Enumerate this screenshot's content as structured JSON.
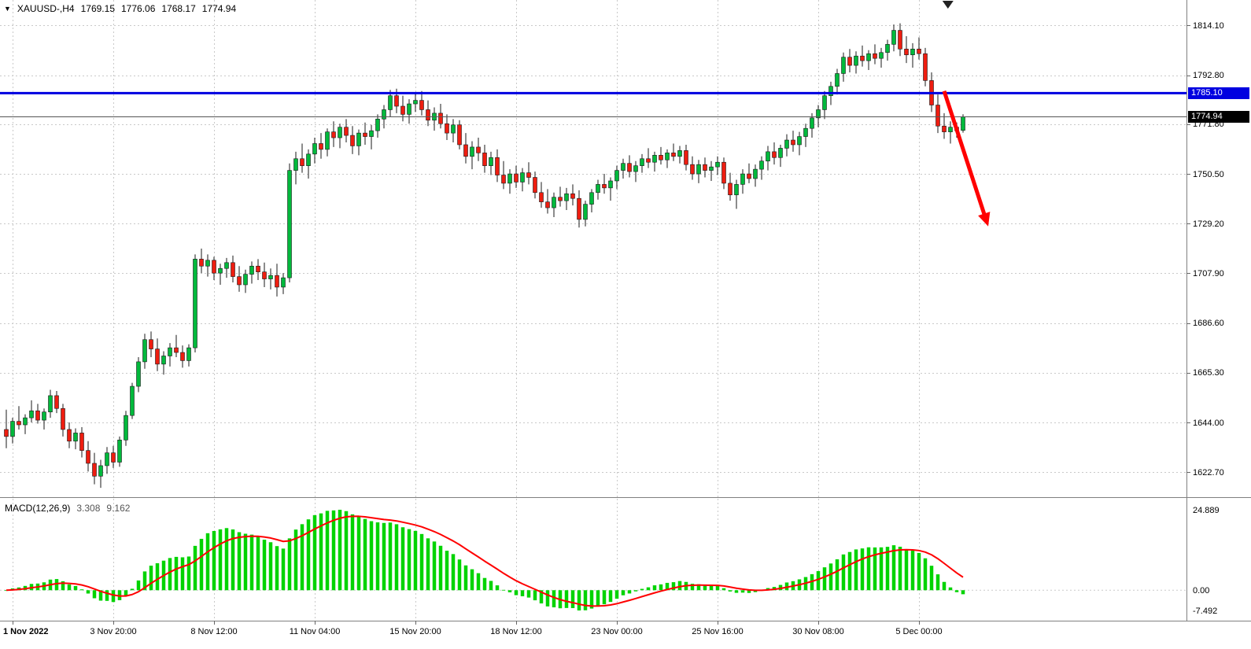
{
  "header": {
    "symbol_period": "XAUUSD-,H4",
    "open": "1769.15",
    "high": "1776.06",
    "low": "1768.17",
    "close": "1774.94"
  },
  "chart_data": {
    "type": "candlestick",
    "symbol": "XAUUSD-",
    "timeframe": "H4",
    "colors": {
      "up": "#00B93C",
      "down": "#EE1D10",
      "wick": "#1a1a1a",
      "grid": "#c9c9c9",
      "resistance": "#0000E0",
      "current": "#555555",
      "histogram": "#00D300",
      "signal": "#FF0000",
      "arrow": "#FF0000",
      "separator": "#808080",
      "current_badge_bg": "#000000"
    },
    "main": {
      "ylim": [
        1612,
        1825
      ],
      "price_grid": [
        "1814.10",
        "1792.80",
        "1771.80",
        "1750.50",
        "1729.20",
        "1707.90",
        "1686.60",
        "1665.30",
        "1644.00",
        "1622.70"
      ],
      "resistance_line": {
        "price": 1785.1,
        "label": "1785.10"
      },
      "current_price": {
        "price": 1774.94,
        "label": "1774.94"
      },
      "arrow": {
        "from_index": 149,
        "from_price": 1786,
        "to_index": 156,
        "to_price": 1728
      },
      "shift_marker_index": 149.6,
      "ohlc": [
        [
          1641,
          1649.5,
          1633,
          1638
        ],
        [
          1638,
          1646,
          1635,
          1644.5
        ],
        [
          1644.5,
          1651,
          1641,
          1643
        ],
        [
          1643,
          1647.5,
          1639,
          1646
        ],
        [
          1646,
          1653.5,
          1644,
          1649
        ],
        [
          1649,
          1652,
          1643.5,
          1645
        ],
        [
          1645,
          1650,
          1641,
          1648.5
        ],
        [
          1648.5,
          1658,
          1646,
          1655.5
        ],
        [
          1655.5,
          1657.5,
          1648,
          1650
        ],
        [
          1650,
          1652,
          1638,
          1641
        ],
        [
          1641,
          1644,
          1633,
          1636
        ],
        [
          1636,
          1641.5,
          1632.5,
          1639.5
        ],
        [
          1639.5,
          1642,
          1629,
          1632
        ],
        [
          1632,
          1636,
          1623,
          1626.5
        ],
        [
          1626.5,
          1631,
          1617.5,
          1621
        ],
        [
          1621,
          1628,
          1616,
          1625.5
        ],
        [
          1625.5,
          1633.5,
          1622,
          1631
        ],
        [
          1631,
          1634,
          1624.5,
          1627
        ],
        [
          1627,
          1638,
          1625,
          1636.5
        ],
        [
          1636.5,
          1649,
          1634,
          1647
        ],
        [
          1647,
          1661,
          1645.5,
          1659.5
        ],
        [
          1659.5,
          1672,
          1657,
          1670
        ],
        [
          1670,
          1682,
          1667,
          1679.5
        ],
        [
          1679.5,
          1683,
          1672,
          1675.5
        ],
        [
          1675.5,
          1680,
          1666,
          1669
        ],
        [
          1669,
          1674.5,
          1664.5,
          1672.5
        ],
        [
          1672.5,
          1678,
          1668,
          1676
        ],
        [
          1676,
          1681.5,
          1672,
          1674
        ],
        [
          1674,
          1677,
          1667.5,
          1670.5
        ],
        [
          1670.5,
          1677.5,
          1668,
          1676
        ],
        [
          1676,
          1716,
          1674,
          1714
        ],
        [
          1714,
          1718.5,
          1708,
          1711
        ],
        [
          1711,
          1716,
          1706.5,
          1713.5
        ],
        [
          1713.5,
          1715,
          1705,
          1708
        ],
        [
          1708,
          1712,
          1703,
          1710
        ],
        [
          1710,
          1714.5,
          1706,
          1712.5
        ],
        [
          1712.5,
          1715.5,
          1704,
          1706.5
        ],
        [
          1706.5,
          1711,
          1700,
          1703
        ],
        [
          1703,
          1709.5,
          1699.5,
          1707.5
        ],
        [
          1707.5,
          1713,
          1703.5,
          1711
        ],
        [
          1711,
          1714,
          1705,
          1708.5
        ],
        [
          1708.5,
          1712.5,
          1702,
          1705.5
        ],
        [
          1705.5,
          1710,
          1701,
          1707
        ],
        [
          1707,
          1712,
          1698,
          1702
        ],
        [
          1702,
          1708,
          1699,
          1706
        ],
        [
          1706,
          1755,
          1704,
          1752
        ],
        [
          1752,
          1760,
          1746,
          1757
        ],
        [
          1757,
          1763.5,
          1751,
          1754
        ],
        [
          1754,
          1761,
          1748.5,
          1759
        ],
        [
          1759,
          1766,
          1755,
          1763.5
        ],
        [
          1763.5,
          1768,
          1757,
          1761
        ],
        [
          1761,
          1770,
          1758,
          1768.5
        ],
        [
          1768.5,
          1773,
          1762,
          1766
        ],
        [
          1766,
          1772,
          1761.5,
          1770.5
        ],
        [
          1770.5,
          1774,
          1764,
          1767
        ],
        [
          1767,
          1771,
          1759,
          1762.5
        ],
        [
          1762.5,
          1769.5,
          1758.5,
          1768
        ],
        [
          1768,
          1772.5,
          1763,
          1766.5
        ],
        [
          1766.5,
          1771.5,
          1761,
          1769
        ],
        [
          1769,
          1776,
          1766,
          1774
        ],
        [
          1774,
          1780,
          1770,
          1778
        ],
        [
          1778,
          1786.5,
          1775,
          1784
        ],
        [
          1784,
          1787,
          1776.5,
          1779.5
        ],
        [
          1779.5,
          1784,
          1773,
          1776
        ],
        [
          1776,
          1782.5,
          1772,
          1780.5
        ],
        [
          1780.5,
          1785.5,
          1777,
          1782
        ],
        [
          1782,
          1786,
          1775.5,
          1778
        ],
        [
          1778,
          1782,
          1771,
          1773.5
        ],
        [
          1773.5,
          1779,
          1769,
          1776.5
        ],
        [
          1776.5,
          1780.5,
          1770,
          1772
        ],
        [
          1772,
          1776,
          1765,
          1768
        ],
        [
          1768,
          1774,
          1764,
          1771.5
        ],
        [
          1771.5,
          1773.5,
          1761,
          1763
        ],
        [
          1763,
          1768,
          1755,
          1758
        ],
        [
          1758,
          1764.5,
          1752.5,
          1762
        ],
        [
          1762,
          1766,
          1756,
          1759.5
        ],
        [
          1759.5,
          1763,
          1751,
          1754
        ],
        [
          1754,
          1760,
          1750,
          1757.5
        ],
        [
          1757.5,
          1761,
          1747,
          1750
        ],
        [
          1750,
          1756,
          1744,
          1746.5
        ],
        [
          1746.5,
          1752.5,
          1742,
          1750.5
        ],
        [
          1750.5,
          1754,
          1744.5,
          1747
        ],
        [
          1747,
          1753,
          1743,
          1751
        ],
        [
          1751,
          1755.5,
          1746,
          1749
        ],
        [
          1749,
          1751.5,
          1740,
          1742.5
        ],
        [
          1742.5,
          1747,
          1736,
          1738.5
        ],
        [
          1738.5,
          1744,
          1733.5,
          1736
        ],
        [
          1736,
          1742.5,
          1732,
          1740.5
        ],
        [
          1740.5,
          1745,
          1736.5,
          1739
        ],
        [
          1739,
          1744.5,
          1735,
          1742
        ],
        [
          1742,
          1746,
          1737,
          1740
        ],
        [
          1740,
          1743.5,
          1727.5,
          1731
        ],
        [
          1731,
          1739,
          1728,
          1737.5
        ],
        [
          1737.5,
          1744,
          1734,
          1742.5
        ],
        [
          1742.5,
          1748,
          1739.5,
          1746
        ],
        [
          1746,
          1750.5,
          1742,
          1744.5
        ],
        [
          1744.5,
          1749,
          1739,
          1747.5
        ],
        [
          1747.5,
          1754,
          1744,
          1752
        ],
        [
          1752,
          1757,
          1748.5,
          1755
        ],
        [
          1755,
          1758.5,
          1749,
          1751.5
        ],
        [
          1751.5,
          1756,
          1747,
          1754
        ],
        [
          1754,
          1759,
          1751,
          1757
        ],
        [
          1757,
          1761.5,
          1753,
          1755.5
        ],
        [
          1755.5,
          1760,
          1751.5,
          1758.5
        ],
        [
          1758.5,
          1762,
          1754.5,
          1756.5
        ],
        [
          1756.5,
          1761,
          1753,
          1759.5
        ],
        [
          1759.5,
          1763.5,
          1756,
          1758
        ],
        [
          1758,
          1762.5,
          1755,
          1760.5
        ],
        [
          1760.5,
          1763,
          1752,
          1754.5
        ],
        [
          1754.5,
          1758,
          1748,
          1750.5
        ],
        [
          1750.5,
          1756.5,
          1746.5,
          1754.5
        ],
        [
          1754.5,
          1757.5,
          1749,
          1752
        ],
        [
          1752,
          1756,
          1747.5,
          1753.5
        ],
        [
          1753.5,
          1758,
          1750,
          1755.5
        ],
        [
          1755.5,
          1757.5,
          1744,
          1746.5
        ],
        [
          1746.5,
          1751,
          1739,
          1741.5
        ],
        [
          1741.5,
          1748,
          1735.5,
          1746
        ],
        [
          1746,
          1752.5,
          1742,
          1750.5
        ],
        [
          1750.5,
          1755,
          1746.5,
          1748.5
        ],
        [
          1748.5,
          1754.5,
          1745,
          1752.5
        ],
        [
          1752.5,
          1758,
          1748,
          1756
        ],
        [
          1756,
          1762.5,
          1752,
          1760
        ],
        [
          1760,
          1764,
          1754.5,
          1757.5
        ],
        [
          1757.5,
          1763,
          1753.5,
          1761.5
        ],
        [
          1761.5,
          1767.5,
          1758,
          1765
        ],
        [
          1765,
          1769,
          1760,
          1763
        ],
        [
          1763,
          1768.5,
          1758.5,
          1766.5
        ],
        [
          1766.5,
          1772,
          1762,
          1770
        ],
        [
          1770,
          1776.5,
          1766,
          1774.5
        ],
        [
          1774.5,
          1780,
          1770.5,
          1778
        ],
        [
          1778,
          1786,
          1774,
          1784
        ],
        [
          1784,
          1790,
          1780,
          1788
        ],
        [
          1788,
          1795.5,
          1784.5,
          1793.5
        ],
        [
          1793.5,
          1802.5,
          1790,
          1800.5
        ],
        [
          1800.5,
          1804,
          1794,
          1797
        ],
        [
          1797,
          1803,
          1793.5,
          1801
        ],
        [
          1801,
          1805.5,
          1796.5,
          1799
        ],
        [
          1799,
          1803.5,
          1795,
          1802
        ],
        [
          1802,
          1806,
          1797.5,
          1800
        ],
        [
          1800,
          1804.5,
          1796,
          1802.5
        ],
        [
          1802.5,
          1808,
          1799,
          1806
        ],
        [
          1806,
          1814.5,
          1803,
          1812
        ],
        [
          1812,
          1815,
          1801,
          1804
        ],
        [
          1804,
          1809.5,
          1798,
          1801.5
        ],
        [
          1801.5,
          1806.5,
          1796,
          1804
        ],
        [
          1804,
          1809,
          1799.5,
          1802
        ],
        [
          1802,
          1804.5,
          1788,
          1790.5
        ],
        [
          1790.5,
          1794,
          1777,
          1780
        ],
        [
          1780,
          1784.5,
          1768,
          1771
        ],
        [
          1771,
          1776.5,
          1765.5,
          1768.5
        ],
        [
          1768.5,
          1773,
          1763.5,
          1770.5
        ],
        [
          1770.5,
          1772.5,
          1766,
          1769
        ],
        [
          1769.15,
          1776.06,
          1768.17,
          1774.94
        ]
      ]
    },
    "time_axis": [
      {
        "index": 1,
        "label": "1 Nov 2022"
      },
      {
        "index": 17,
        "label": "3 Nov 20:00"
      },
      {
        "index": 33,
        "label": "8 Nov 12:00"
      },
      {
        "index": 49,
        "label": "11 Nov 04:00"
      },
      {
        "index": 65,
        "label": "15 Nov 20:00"
      },
      {
        "index": 81,
        "label": "18 Nov 12:00"
      },
      {
        "index": 97,
        "label": "23 Nov 00:00"
      },
      {
        "index": 113,
        "label": "25 Nov 16:00"
      },
      {
        "index": 129,
        "label": "30 Nov 08:00"
      },
      {
        "index": 145,
        "label": "5 Dec 00:00"
      }
    ],
    "macd": {
      "name": "MACD(12,26,9)",
      "params": [
        12,
        26,
        9
      ],
      "value": "3.308",
      "signal_value": "9.162",
      "scale_labels": [
        "24.889",
        "0.00",
        "-7.492"
      ]
    }
  }
}
